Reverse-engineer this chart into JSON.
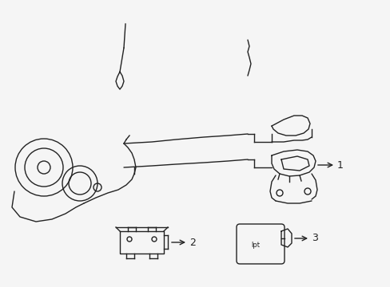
{
  "bg_color": "#f5f5f5",
  "line_color": "#222222",
  "line_width": 1.0,
  "label_1": "1",
  "label_2": "2",
  "label_3": "3",
  "label_text_3": "lpt",
  "title": ""
}
